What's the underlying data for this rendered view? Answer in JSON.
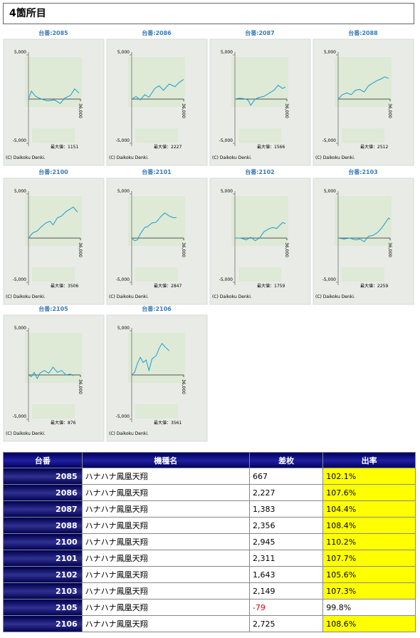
{
  "header": {
    "title": "4箇所目"
  },
  "chart_data": [
    {
      "type": "line",
      "title": "台番:2085",
      "color": "#1a9fd0",
      "xlim": [
        0,
        36000
      ],
      "ylim": [
        -5000,
        5000
      ],
      "xticks": [
        {
          "value": 36000,
          "label": "36,000"
        }
      ],
      "yticks": [
        {
          "value": 5000,
          "label": "5,000"
        },
        {
          "value": -5000,
          "label": "-5,000"
        }
      ],
      "annotation": "最大値：1151",
      "copyright": "(C) Daikoku Denki.",
      "x": [
        0,
        2000,
        5000,
        9000,
        13000,
        18000,
        22000,
        25000,
        29000,
        32000,
        35000
      ],
      "values": [
        0,
        900,
        300,
        0,
        -200,
        -100,
        -500,
        100,
        400,
        1151,
        667
      ]
    },
    {
      "type": "line",
      "title": "台番:2086",
      "color": "#1a9fd0",
      "xlim": [
        0,
        36000
      ],
      "ylim": [
        -5000,
        5000
      ],
      "xticks": [
        {
          "value": 36000,
          "label": "36,000"
        }
      ],
      "yticks": [
        {
          "value": 5000,
          "label": "5,000"
        },
        {
          "value": -5000,
          "label": "-5,000"
        }
      ],
      "annotation": "最大値：2227",
      "copyright": "(C) Daikoku Denki.",
      "x": [
        0,
        3000,
        6000,
        9000,
        12000,
        16000,
        19000,
        22000,
        26000,
        30000,
        33000,
        36000
      ],
      "values": [
        0,
        300,
        -100,
        500,
        200,
        1200,
        1500,
        1000,
        1700,
        1400,
        1900,
        2227
      ]
    },
    {
      "type": "line",
      "title": "台番:2087",
      "color": "#1a9fd0",
      "xlim": [
        0,
        36000
      ],
      "ylim": [
        -5000,
        5000
      ],
      "xticks": [
        {
          "value": 36000,
          "label": "36,000"
        }
      ],
      "yticks": [
        {
          "value": 5000,
          "label": "5,000"
        },
        {
          "value": -5000,
          "label": "-5,000"
        }
      ],
      "annotation": "最大値：1566",
      "copyright": "(C) Daikoku Denki.",
      "x": [
        0,
        3000,
        6000,
        9000,
        11000,
        14000,
        17000,
        20000,
        24000,
        27000,
        30000,
        33000,
        35000
      ],
      "values": [
        0,
        100,
        50,
        -100,
        -700,
        0,
        200,
        300,
        700,
        1000,
        1566,
        1200,
        1383
      ]
    },
    {
      "type": "line",
      "title": "台番:2088",
      "color": "#1a9fd0",
      "xlim": [
        0,
        36000
      ],
      "ylim": [
        -5000,
        5000
      ],
      "xticks": [
        {
          "value": 36000,
          "label": "36,000"
        }
      ],
      "yticks": [
        {
          "value": 5000,
          "label": "5,000"
        },
        {
          "value": -5000,
          "label": "-5,000"
        }
      ],
      "annotation": "最大値：2512",
      "copyright": "(C) Daikoku Denki.",
      "x": [
        0,
        3000,
        6000,
        9000,
        12000,
        15000,
        18000,
        21000,
        24000,
        27000,
        30000,
        32000,
        35000
      ],
      "values": [
        0,
        500,
        700,
        500,
        1000,
        1100,
        800,
        1500,
        1800,
        2100,
        2300,
        2512,
        2356
      ]
    },
    {
      "type": "line",
      "title": "台番:2100",
      "color": "#1a9fd0",
      "xlim": [
        0,
        36000
      ],
      "ylim": [
        -5000,
        5000
      ],
      "xticks": [
        {
          "value": 36000,
          "label": "36,000"
        }
      ],
      "yticks": [
        {
          "value": 5000,
          "label": "5,000"
        },
        {
          "value": -5000,
          "label": "-5,000"
        }
      ],
      "annotation": "最大値：3506",
      "copyright": "(C) Daikoku Denki.",
      "x": [
        0,
        3000,
        6000,
        9000,
        12000,
        15000,
        17000,
        20000,
        23000,
        26000,
        29000,
        31000,
        34000
      ],
      "values": [
        0,
        600,
        800,
        1300,
        1700,
        1900,
        1500,
        2300,
        2500,
        3000,
        3300,
        3506,
        2945
      ]
    },
    {
      "type": "line",
      "title": "台番:2101",
      "color": "#1a9fd0",
      "xlim": [
        0,
        36000
      ],
      "ylim": [
        -5000,
        5000
      ],
      "xticks": [
        {
          "value": 36000,
          "label": "36,000"
        }
      ],
      "yticks": [
        {
          "value": 5000,
          "label": "5,000"
        },
        {
          "value": -5000,
          "label": "-5,000"
        }
      ],
      "annotation": "最大値：2847",
      "copyright": "(C) Daikoku Denki.",
      "x": [
        0,
        2000,
        4000,
        6000,
        9000,
        11000,
        14000,
        17000,
        20000,
        23000,
        26000,
        29000,
        31000
      ],
      "values": [
        0,
        -300,
        -200,
        500,
        1200,
        1300,
        1700,
        1800,
        2400,
        2847,
        2500,
        2300,
        2311
      ]
    },
    {
      "type": "line",
      "title": "台番:2102",
      "color": "#1a9fd0",
      "xlim": [
        0,
        36000
      ],
      "ylim": [
        -5000,
        5000
      ],
      "xticks": [
        {
          "value": 36000,
          "label": "36,000"
        }
      ],
      "yticks": [
        {
          "value": 5000,
          "label": "5,000"
        },
        {
          "value": -5000,
          "label": "-5,000"
        }
      ],
      "annotation": "最大値：1759",
      "copyright": "(C) Daikoku Denki.",
      "x": [
        0,
        4000,
        8000,
        11000,
        14000,
        17000,
        20000,
        23000,
        26000,
        29000,
        33000,
        35000
      ],
      "values": [
        0,
        0,
        -200,
        100,
        -300,
        0,
        700,
        1000,
        1200,
        1100,
        1759,
        1643
      ]
    },
    {
      "type": "line",
      "title": "台番:2103",
      "color": "#1a9fd0",
      "xlim": [
        0,
        36000
      ],
      "ylim": [
        -5000,
        5000
      ],
      "xticks": [
        {
          "value": 36000,
          "label": "36,000"
        }
      ],
      "yticks": [
        {
          "value": 5000,
          "label": "5,000"
        },
        {
          "value": -5000,
          "label": "-5,000"
        }
      ],
      "annotation": "最大値：2259",
      "copyright": "(C) Daikoku Denki.",
      "x": [
        0,
        4000,
        8000,
        12000,
        15000,
        18000,
        21000,
        24000,
        27000,
        30000,
        33000,
        35000,
        36000
      ],
      "values": [
        0,
        -100,
        0,
        -200,
        -100,
        -400,
        200,
        300,
        600,
        1100,
        1800,
        2259,
        2149
      ]
    },
    {
      "type": "line",
      "title": "台番:2105",
      "color": "#1a9fd0",
      "xlim": [
        0,
        36000
      ],
      "ylim": [
        -5000,
        5000
      ],
      "xticks": [
        {
          "value": 36000,
          "label": "36,000"
        }
      ],
      "yticks": [
        {
          "value": 5000,
          "label": "5,000"
        },
        {
          "value": -5000,
          "label": "-5,000"
        }
      ],
      "annotation": "最大値：876",
      "copyright": "(C) Daikoku Denki.",
      "x": [
        0,
        2000,
        4000,
        6000,
        8000,
        11000,
        14000,
        17000,
        20000,
        23000,
        26000,
        29000,
        31000
      ],
      "values": [
        0,
        -200,
        300,
        -400,
        200,
        500,
        200,
        876,
        300,
        500,
        0,
        100,
        -79
      ]
    },
    {
      "type": "line",
      "title": "台番:2106",
      "color": "#1a9fd0",
      "xlim": [
        0,
        36000
      ],
      "ylim": [
        -5000,
        5000
      ],
      "xticks": [
        {
          "value": 36000,
          "label": "36,000"
        }
      ],
      "yticks": [
        {
          "value": 5000,
          "label": "5,000"
        },
        {
          "value": -5000,
          "label": "-5,000"
        }
      ],
      "annotation": "最大値：3561",
      "copyright": "(C) Daikoku Denki.",
      "x": [
        0,
        2000,
        4000,
        6000,
        8000,
        10000,
        12000,
        14000,
        17000,
        19000,
        21000,
        23000,
        26000
      ],
      "values": [
        0,
        300,
        1300,
        2000,
        1400,
        1700,
        500,
        1800,
        2200,
        3000,
        3561,
        3200,
        2725
      ]
    }
  ],
  "table": {
    "header": [
      "台番",
      "機種名",
      "差枚",
      "出率"
    ],
    "rows": [
      [
        "2085",
        "ハナハナ鳳凰天翔",
        "667",
        "102.1%"
      ],
      [
        "2086",
        "ハナハナ鳳凰天翔",
        "2,227",
        "107.6%"
      ],
      [
        "2087",
        "ハナハナ鳳凰天翔",
        "1,383",
        "104.4%"
      ],
      [
        "2088",
        "ハナハナ鳳凰天翔",
        "2,356",
        "108.4%"
      ],
      [
        "2100",
        "ハナハナ鳳凰天翔",
        "2,945",
        "110.2%"
      ],
      [
        "2101",
        "ハナハナ鳳凰天翔",
        "2,311",
        "107.7%"
      ],
      [
        "2102",
        "ハナハナ鳳凰天翔",
        "1,643",
        "105.6%"
      ],
      [
        "2103",
        "ハナハナ鳳凰天翔",
        "2,149",
        "107.3%"
      ],
      [
        "2105",
        "ハナハナ鳳凰天翔",
        "-79",
        "99.8%"
      ],
      [
        "2106",
        "ハナハナ鳳凰天翔",
        "2,725",
        "108.6%"
      ]
    ]
  }
}
